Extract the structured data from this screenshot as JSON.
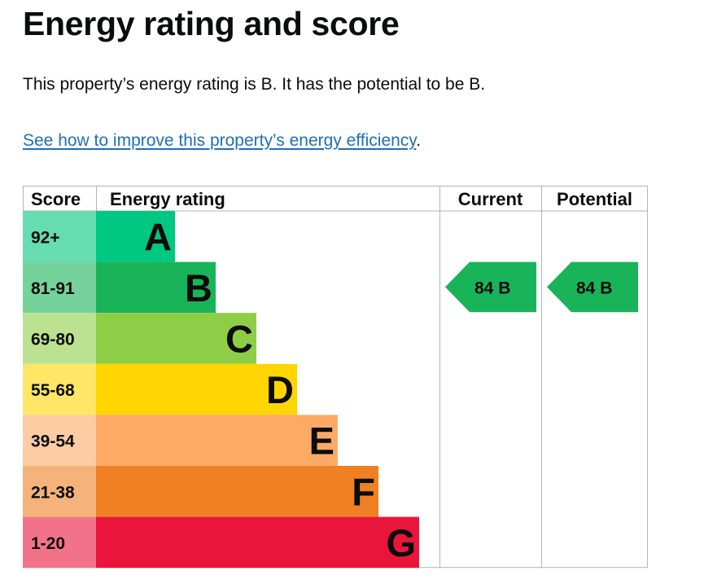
{
  "page": {
    "title": "Energy rating and score",
    "intro": "This property’s energy rating is B. It has the potential to be B.",
    "link_text": "See how to improve this property’s energy efficiency",
    "link_suffix": "."
  },
  "chart_data": {
    "type": "bar",
    "headers": {
      "score": "Score",
      "rating": "Energy rating",
      "current": "Current",
      "potential": "Potential"
    },
    "bands": [
      {
        "letter": "A",
        "score_range": "92+",
        "color": "#00c781",
        "score_bg": "#66dcb3"
      },
      {
        "letter": "B",
        "score_range": "81-91",
        "color": "#19b459",
        "score_bg": "#75d29b"
      },
      {
        "letter": "C",
        "score_range": "69-80",
        "color": "#8dce46",
        "score_bg": "#bbe290"
      },
      {
        "letter": "D",
        "score_range": "55-68",
        "color": "#ffd500",
        "score_bg": "#ffe666"
      },
      {
        "letter": "E",
        "score_range": "39-54",
        "color": "#fcaa65",
        "score_bg": "#fdcca3"
      },
      {
        "letter": "F",
        "score_range": "21-38",
        "color": "#ef8023",
        "score_bg": "#f5b37b"
      },
      {
        "letter": "G",
        "score_range": "1-20",
        "color": "#e9153b",
        "score_bg": "#f27389"
      }
    ],
    "current": {
      "score": 84,
      "band": "B",
      "label": "84  B"
    },
    "potential": {
      "score": 84,
      "band": "B",
      "label": "84  B"
    }
  }
}
